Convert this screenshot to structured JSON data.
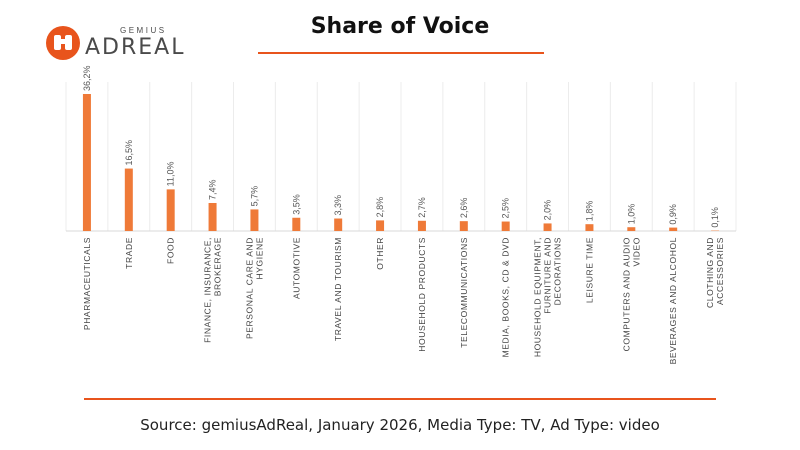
{
  "header": {
    "logo_top": "GEMIUS",
    "logo_main": "ADREAL",
    "title": "Share of Voice"
  },
  "footer": {
    "source": "Source: gemiusAdReal, January 2026, Media Type: TV, Ad Type: video"
  },
  "colors": {
    "accent": "#e8541c",
    "bar": "#ef7a38"
  },
  "chart_data": {
    "type": "bar",
    "title": "Share of Voice",
    "categories": [
      "PHARMACEUTICALS",
      "TRADE",
      "FOOD",
      "FINANCE, INSURANCE, BROKERAGE",
      "PERSONAL CARE AND HYGIENE",
      "AUTOMOTIVE",
      "TRAVEL AND TOURISM",
      "OTHER",
      "HOUSEHOLD PRODUCTS",
      "TELECOMMUNICATIONS",
      "MEDIA, BOOKS, CD & DVD",
      "HOUSEHOLD EQUIPMENT, FURNITURE AND DECORATIONS",
      "LEISURE TIME",
      "COMPUTERS AND AUDIO VIDEO",
      "BEVERAGES AND ALCOHOL",
      "CLOTHING AND ACCESSORIES"
    ],
    "values": [
      36.2,
      16.5,
      11.0,
      7.4,
      5.7,
      3.5,
      3.3,
      2.8,
      2.7,
      2.6,
      2.5,
      2.0,
      1.8,
      1.0,
      0.9,
      0.1
    ],
    "value_labels": [
      "36,2%",
      "16,5%",
      "11,0%",
      "7,4%",
      "5,7%",
      "3,5%",
      "3,3%",
      "2,8%",
      "2,7%",
      "2,6%",
      "2,5%",
      "2,0%",
      "1,8%",
      "1,0%",
      "0,9%",
      "0,1%"
    ],
    "xlabel": "",
    "ylabel": "",
    "ylim": [
      0,
      36.2
    ],
    "grid": "vertical separators",
    "legend": "none"
  }
}
